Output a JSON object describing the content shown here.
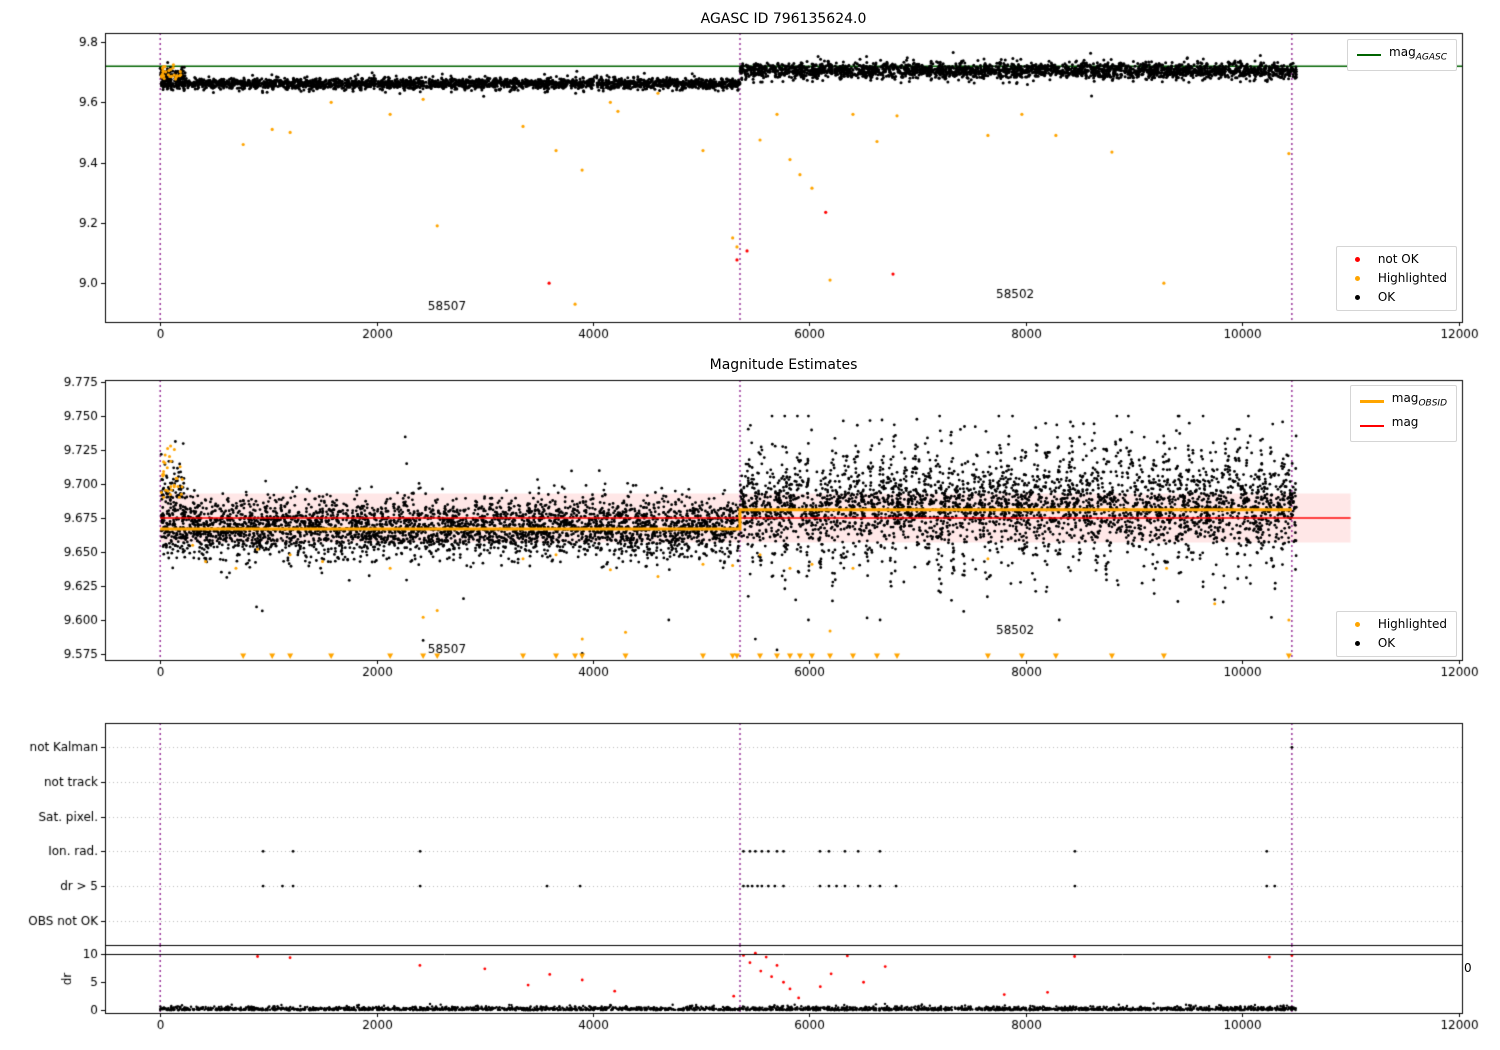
{
  "colors": {
    "ok": "#000000",
    "highlighted": "#ffa500",
    "not_ok": "#ff0000",
    "mag_agasc_line": "#006400",
    "mag_obsid_line": "#ffa500",
    "mag_line": "#ff0000",
    "vline": "#800080",
    "band_fill": "rgba(255,60,60,0.12)",
    "grid": "#bbbbbb"
  },
  "chart_data": [
    {
      "id": "agasc_mags",
      "type": "scatter",
      "title": "AGASC ID 796135624.0",
      "xlim": [
        -510,
        12030
      ],
      "ylim": [
        8.871,
        9.83
      ],
      "xticks": [
        0,
        2000,
        4000,
        6000,
        8000,
        10000,
        12000
      ],
      "yticks": [
        9.0,
        9.2,
        9.4,
        9.6,
        9.8
      ],
      "ytick_decimals": 1,
      "mag_agasc": 9.72,
      "vlines": [
        0,
        5358,
        10458
      ],
      "obsid_labels": [
        {
          "text": "58507",
          "x": 2650,
          "y": 8.921
        },
        {
          "text": "58502",
          "x": 7900,
          "y": 8.962
        }
      ],
      "ok_segments": [
        {
          "x0": 10,
          "x1": 5358,
          "mean": 9.662,
          "sigma": 0.009,
          "n": 2600
        },
        {
          "x0": 5358,
          "x1": 10500,
          "mean": 9.705,
          "sigma": 0.013,
          "n": 2600
        }
      ],
      "ok_start_cluster": {
        "x0": 0,
        "x1": 230,
        "mean": 9.69,
        "sigma": 0.012,
        "n": 90
      },
      "highlighted_cluster": {
        "x0": 0,
        "x1": 220,
        "ymin": 9.675,
        "ymax": 9.725,
        "n": 26
      },
      "highlighted_points": [
        [
          767,
          9.46
        ],
        [
          1035,
          9.51
        ],
        [
          1201,
          9.5
        ],
        [
          1580,
          9.6
        ],
        [
          2125,
          9.56
        ],
        [
          2430,
          9.61
        ],
        [
          2560,
          9.19
        ],
        [
          3353,
          9.52
        ],
        [
          3658,
          9.44
        ],
        [
          3834,
          8.93
        ],
        [
          3899,
          9.375
        ],
        [
          4160,
          9.6
        ],
        [
          4230,
          9.57
        ],
        [
          4600,
          9.63
        ],
        [
          5016,
          9.44
        ],
        [
          5290,
          9.15
        ],
        [
          5330,
          9.12
        ],
        [
          5543,
          9.475
        ],
        [
          5700,
          9.56
        ],
        [
          5820,
          9.41
        ],
        [
          5912,
          9.36
        ],
        [
          6023,
          9.315
        ],
        [
          6190,
          9.01
        ],
        [
          6402,
          9.56
        ],
        [
          6624,
          9.47
        ],
        [
          6809,
          9.555
        ],
        [
          7649,
          9.49
        ],
        [
          7963,
          9.56
        ],
        [
          8277,
          9.49
        ],
        [
          8795,
          9.435
        ],
        [
          9275,
          9.0
        ],
        [
          10430,
          9.43
        ]
      ],
      "notok_points": [
        [
          3594,
          9.0
        ],
        [
          5330,
          9.077
        ],
        [
          5423,
          9.107
        ],
        [
          6150,
          9.235
        ],
        [
          6772,
          9.03
        ]
      ],
      "legend_line": [
        {
          "prefix": "mag",
          "sub": "AGASC"
        }
      ],
      "legend_markers": [
        {
          "label": "not OK",
          "color_key": "not_ok"
        },
        {
          "label": "Highlighted",
          "color_key": "highlighted"
        },
        {
          "label": "OK",
          "color_key": "ok"
        }
      ]
    },
    {
      "id": "magnitude_estimates",
      "type": "scatter",
      "title": "Magnitude Estimates",
      "xlim": [
        -510,
        12030
      ],
      "ylim": [
        9.5706,
        9.7765
      ],
      "xticks": [
        0,
        2000,
        4000,
        6000,
        8000,
        10000,
        12000
      ],
      "yticks": [
        9.575,
        9.6,
        9.625,
        9.65,
        9.675,
        9.7,
        9.725,
        9.75,
        9.775
      ],
      "ytick_decimals": 3,
      "vlines": [
        0,
        5358,
        10458
      ],
      "mag": 9.675,
      "mag_err_band": 0.018,
      "stat_range": [
        0,
        11000
      ],
      "mag_obsid_segments": [
        {
          "x0": 0,
          "x1": 5358,
          "y": 9.667
        },
        {
          "x0": 5358,
          "x1": 10458,
          "y": 9.681
        }
      ],
      "ok_segments": [
        {
          "x0": 10,
          "x1": 5358,
          "mean": 9.668,
          "sigma": 0.011,
          "n": 3600,
          "stripe_amp": 0,
          "stripe_period": 0
        },
        {
          "x0": 5358,
          "x1": 10500,
          "mean": 9.684,
          "sigma": 0.009,
          "n": 3600,
          "stripe_amp": 0.022,
          "stripe_period": 220
        }
      ],
      "ok_start_cluster": {
        "x0": 0,
        "x1": 230,
        "mean": 9.697,
        "sigma": 0.012,
        "n": 70
      },
      "ok_low_points": [
        [
          2430,
          9.585
        ],
        [
          3900,
          9.5755
        ],
        [
          5500,
          9.586
        ],
        [
          5700,
          9.578
        ],
        [
          9745,
          9.615
        ],
        [
          4700,
          9.6
        ]
      ],
      "highlighted_cluster": {
        "x0": 0,
        "x1": 210,
        "ymin": 9.69,
        "ymax": 9.728,
        "n": 30
      },
      "highlighted_points": [
        [
          300,
          9.655
        ],
        [
          420,
          9.643
        ],
        [
          700,
          9.638
        ],
        [
          900,
          9.652
        ],
        [
          1201,
          9.648
        ],
        [
          1500,
          9.643
        ],
        [
          2125,
          9.638
        ],
        [
          2430,
          9.602
        ],
        [
          2560,
          9.607
        ],
        [
          3353,
          9.645
        ],
        [
          3658,
          9.648
        ],
        [
          3900,
          9.586
        ],
        [
          4160,
          9.637
        ],
        [
          4300,
          9.591
        ],
        [
          4600,
          9.632
        ],
        [
          5016,
          9.641
        ],
        [
          5290,
          9.64
        ],
        [
          5543,
          9.648
        ],
        [
          5820,
          9.638
        ],
        [
          6023,
          9.641
        ],
        [
          6190,
          9.592
        ],
        [
          6402,
          9.638
        ],
        [
          7649,
          9.645
        ],
        [
          9745,
          9.612
        ],
        [
          9300,
          9.638
        ],
        [
          10430,
          9.6
        ]
      ],
      "clipped_low_x": [
        767,
        1035,
        1201,
        1580,
        2125,
        2430,
        2560,
        3353,
        3658,
        3834,
        3899,
        4300,
        5016,
        5290,
        5330,
        5543,
        5700,
        5820,
        5912,
        6023,
        6190,
        6402,
        6624,
        6809,
        7649,
        7963,
        8277,
        8795,
        9275,
        10430
      ],
      "obsid_labels": [
        {
          "text": "58507",
          "x": 2650,
          "y": 9.578
        },
        {
          "text": "58502",
          "x": 7900,
          "y": 9.592
        }
      ],
      "legend_line": [
        {
          "prefix": "mag",
          "sub": "OBSID"
        },
        {
          "prefix": "mag",
          "sub": ""
        }
      ],
      "legend_markers": [
        {
          "label": "Highlighted",
          "color_key": "highlighted"
        },
        {
          "label": "OK",
          "color_key": "ok"
        }
      ]
    },
    {
      "id": "quality_flags",
      "type": "scatter",
      "categories": [
        "not Kalman",
        "not track",
        "Sat. pixel.",
        "Ion. rad.",
        "dr > 5",
        "OBS not OK"
      ],
      "xlim": [
        -510,
        12030
      ],
      "vlines": [
        0,
        5358,
        10458
      ],
      "flag_points": [
        {
          "label": "not Kalman",
          "row": 0,
          "x": [
            10458
          ]
        },
        {
          "label": "Ion. rad.",
          "row": 3,
          "x": [
            951,
            1228,
            2402,
            5390,
            5450,
            5500,
            5560,
            5620,
            5700,
            5760,
            6097,
            6180,
            6328,
            6450,
            6651,
            8453,
            10226
          ]
        },
        {
          "label": "dr > 5",
          "row": 4,
          "x": [
            951,
            1130,
            1228,
            2402,
            3575,
            3880,
            5390,
            5430,
            5470,
            5520,
            5560,
            5620,
            5680,
            5760,
            6097,
            6180,
            6250,
            6328,
            6450,
            6560,
            6651,
            6800,
            8453,
            10226,
            10300
          ]
        }
      ]
    },
    {
      "id": "dr",
      "type": "scatter",
      "ylabel": "dr",
      "xlim": [
        -510,
        12030
      ],
      "ylim": [
        -0.5,
        11.66
      ],
      "xticks": [
        0,
        2000,
        4000,
        6000,
        8000,
        10000,
        12000
      ],
      "yticks": [
        0,
        5,
        10
      ],
      "hline": 10,
      "vlines": [
        0,
        5358,
        10458
      ],
      "ok_scatter": {
        "x0": 0,
        "x1": 10500,
        "n": 2400,
        "scale": 0.32
      },
      "red_points": [
        [
          900,
          9.6
        ],
        [
          1200,
          9.4
        ],
        [
          2400,
          8.0
        ],
        [
          3000,
          7.4
        ],
        [
          3400,
          4.5
        ],
        [
          3600,
          6.4
        ],
        [
          3900,
          5.4
        ],
        [
          4200,
          3.4
        ],
        [
          5300,
          2.5
        ],
        [
          5390,
          9.8
        ],
        [
          5450,
          8.5
        ],
        [
          5500,
          10.2
        ],
        [
          5550,
          7.0
        ],
        [
          5600,
          9.5
        ],
        [
          5650,
          6.0
        ],
        [
          5700,
          8.0
        ],
        [
          5760,
          5.0
        ],
        [
          5820,
          3.8
        ],
        [
          5900,
          2.2
        ],
        [
          6100,
          4.2
        ],
        [
          6200,
          6.5
        ],
        [
          6350,
          9.7
        ],
        [
          6500,
          5.0
        ],
        [
          6700,
          7.8
        ],
        [
          7800,
          2.8
        ],
        [
          8200,
          3.2
        ],
        [
          8450,
          9.6
        ],
        [
          10250,
          9.5
        ],
        [
          10458,
          9.8
        ]
      ],
      "stray_text": {
        "text": "0"
      }
    }
  ]
}
